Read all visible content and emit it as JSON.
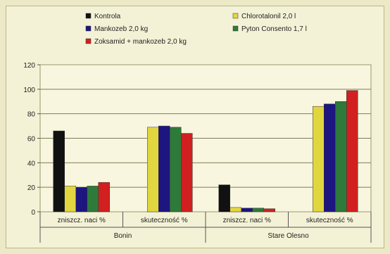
{
  "chart_data": {
    "type": "bar",
    "groups": [
      "Bonin",
      "Stare Olesno"
    ],
    "categories": [
      "zniszcz. naci %",
      "skuteczność %",
      "zniszcz. naci %",
      "skuteczność %"
    ],
    "series": [
      {
        "name": "Kontrola",
        "color": "#111111",
        "values": [
          66,
          null,
          22,
          null
        ]
      },
      {
        "name": "Chlorotalonil 2,0 l",
        "color": "#e2d640",
        "values": [
          21,
          69,
          3.5,
          86
        ]
      },
      {
        "name": "Mankozeb 2,0 kg",
        "color": "#1d1580",
        "values": [
          20,
          70,
          3,
          88
        ]
      },
      {
        "name": "Pyton Consento 1,7 l",
        "color": "#2e7a3a",
        "values": [
          21,
          69,
          3,
          90
        ]
      },
      {
        "name": "Zoksamid + mankozeb 2,0 kg",
        "color": "#d21f1f",
        "values": [
          24,
          64,
          2.5,
          99
        ]
      }
    ],
    "ylim": [
      0,
      120
    ],
    "yticks": [
      "0",
      "20",
      "40",
      "60",
      "80",
      "100",
      "120"
    ],
    "legend_position": "top",
    "grid": true
  }
}
